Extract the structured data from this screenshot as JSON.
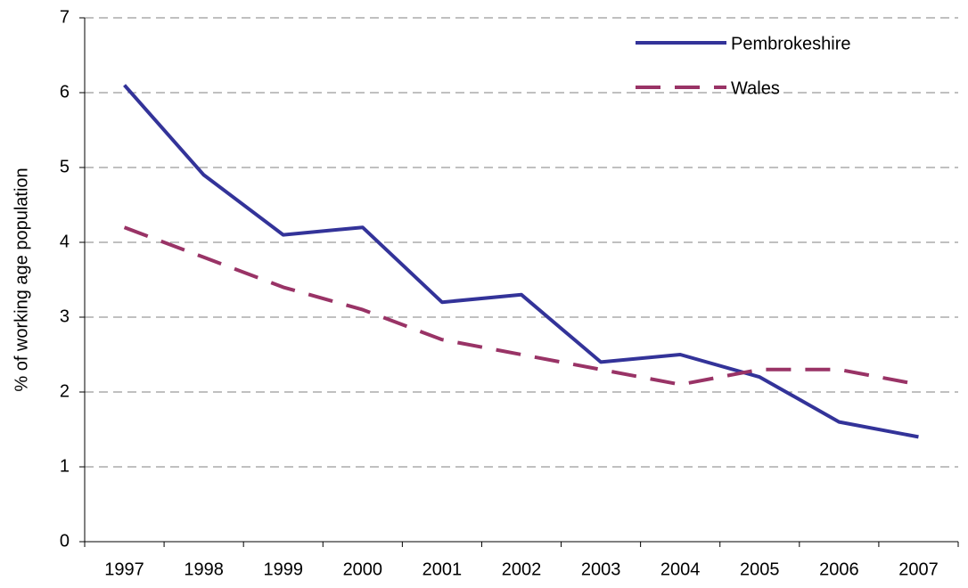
{
  "chart_data": {
    "type": "line",
    "y_label": "% of working age population",
    "categories": [
      "1997",
      "1998",
      "1999",
      "2000",
      "2001",
      "2002",
      "2003",
      "2004",
      "2005",
      "2006",
      "2007"
    ],
    "series": [
      {
        "name": "Pembrokeshire",
        "color": "#333399",
        "dashed": false,
        "values": [
          6.1,
          4.9,
          4.1,
          4.2,
          3.2,
          3.3,
          2.4,
          2.5,
          2.2,
          1.6,
          1.4
        ]
      },
      {
        "name": "Wales",
        "color": "#993366",
        "dashed": true,
        "values": [
          4.2,
          3.8,
          3.4,
          3.1,
          2.7,
          2.5,
          2.3,
          2.1,
          2.3,
          2.3,
          2.1
        ]
      }
    ],
    "ylim": [
      0,
      7
    ],
    "yticks": [
      0,
      1,
      2,
      3,
      4,
      5,
      6,
      7
    ],
    "grid": true,
    "legend": "top-right"
  }
}
